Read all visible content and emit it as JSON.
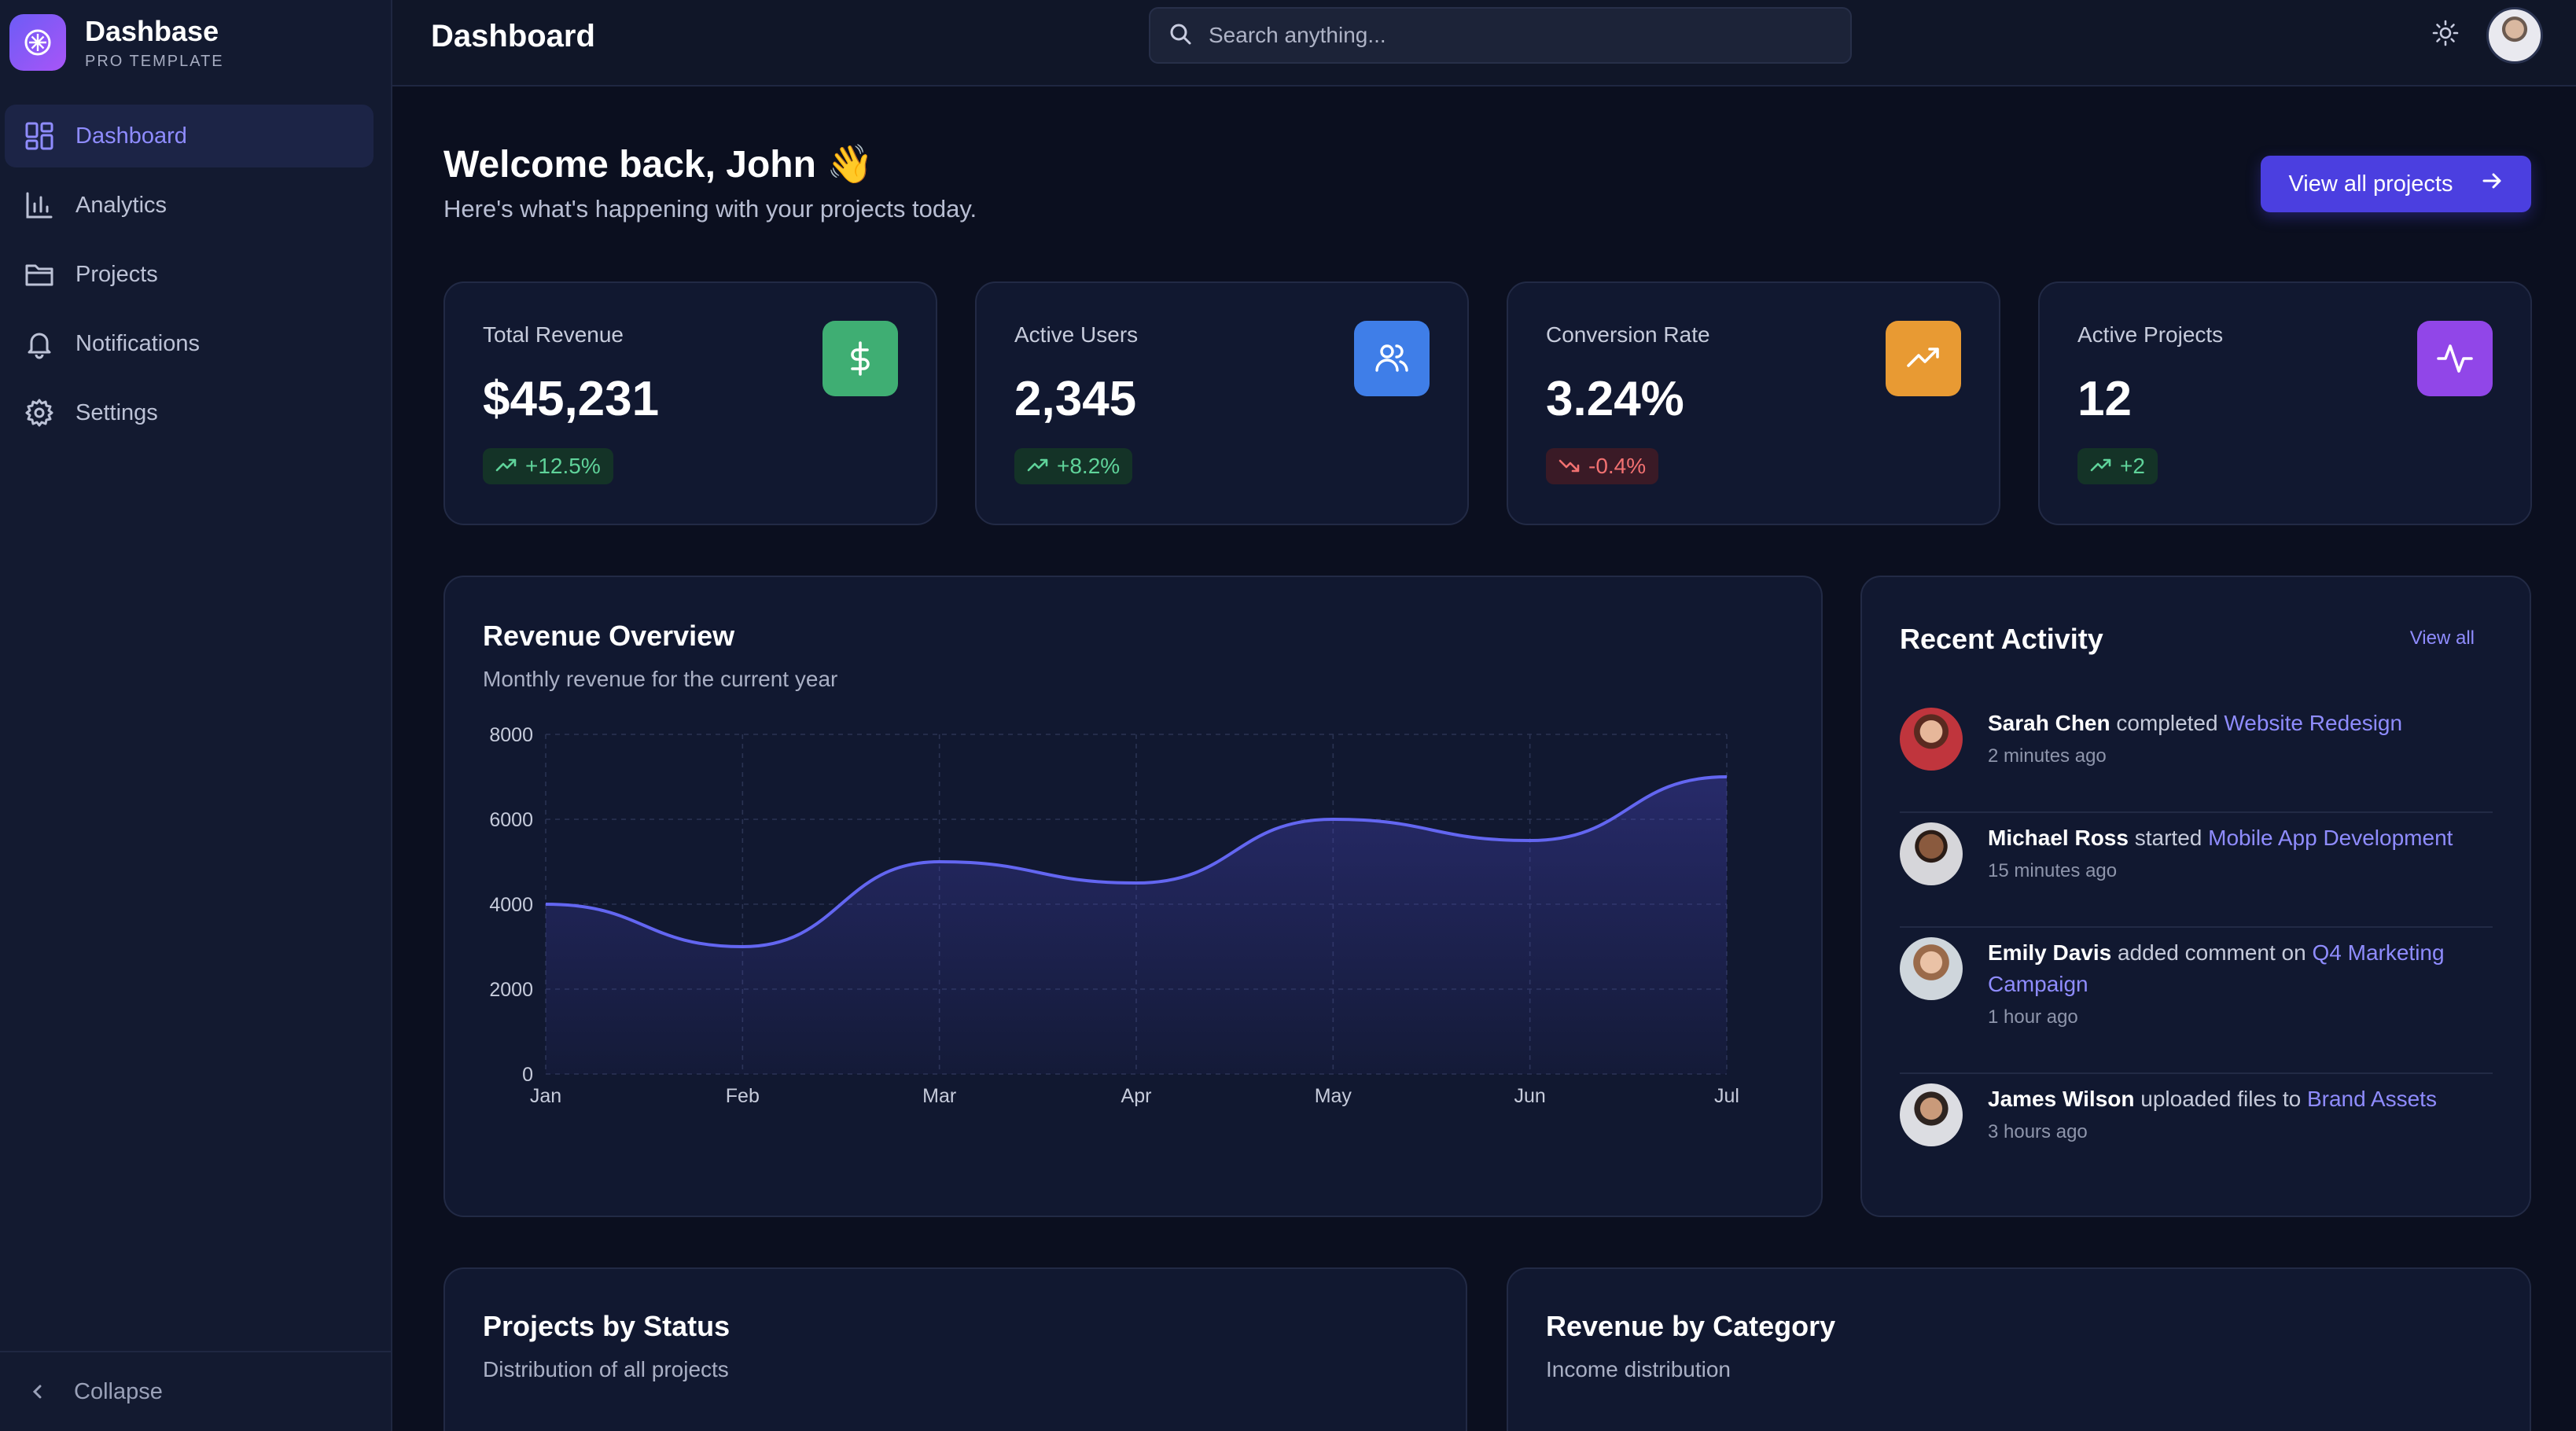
{
  "brand": {
    "name": "Dashbase",
    "tagline": "PRO TEMPLATE"
  },
  "sidebar": {
    "items": [
      {
        "label": "Dashboard",
        "icon": "grid-icon",
        "active": true
      },
      {
        "label": "Analytics",
        "icon": "bar-chart-icon"
      },
      {
        "label": "Projects",
        "icon": "folder-icon"
      },
      {
        "label": "Notifications",
        "icon": "bell-icon"
      },
      {
        "label": "Settings",
        "icon": "gear-icon"
      }
    ],
    "collapse_label": "Collapse"
  },
  "topbar": {
    "title": "Dashboard",
    "search_placeholder": "Search anything..."
  },
  "welcome": {
    "title": "Welcome back, John 👋",
    "subtitle": "Here's what's happening with your projects today.",
    "button_label": "View all projects"
  },
  "stats": [
    {
      "label": "Total Revenue",
      "value": "$45,231",
      "change": "+12.5%",
      "trend": "up",
      "icon": "dollar-icon",
      "color": "#3fae73"
    },
    {
      "label": "Active Users",
      "value": "2,345",
      "change": "+8.2%",
      "trend": "up",
      "icon": "users-icon",
      "color": "#3f7ee8"
    },
    {
      "label": "Conversion Rate",
      "value": "3.24%",
      "change": "-0.4%",
      "trend": "down",
      "icon": "trending-up-icon",
      "color": "#e89a33"
    },
    {
      "label": "Active Projects",
      "value": "12",
      "change": "+2",
      "trend": "up",
      "icon": "activity-icon",
      "color": "#9146e8"
    }
  ],
  "revenue": {
    "title": "Revenue Overview",
    "subtitle": "Monthly revenue for the current year"
  },
  "chart_data": {
    "type": "area",
    "title": "Revenue Overview",
    "categories": [
      "Jan",
      "Feb",
      "Mar",
      "Apr",
      "May",
      "Jun",
      "Jul"
    ],
    "values": [
      4000,
      3000,
      5000,
      4500,
      6000,
      5500,
      7000
    ],
    "yticks": [
      0,
      2000,
      4000,
      6000,
      8000
    ],
    "ylim": [
      0,
      8000
    ],
    "grid": true,
    "line_color": "#6366f1"
  },
  "activity": {
    "title": "Recent Activity",
    "view_all": "View all",
    "items": [
      {
        "user": "Sarah Chen",
        "action": "completed",
        "target": "Website Redesign",
        "time": "2 minutes ago"
      },
      {
        "user": "Michael Ross",
        "action": "started",
        "target": "Mobile App Development",
        "time": "15 minutes ago"
      },
      {
        "user": "Emily Davis",
        "action": "added comment on",
        "target": "Q4 Marketing Campaign",
        "time": "1 hour ago"
      },
      {
        "user": "James Wilson",
        "action": "uploaded files to",
        "target": "Brand Assets",
        "time": "3 hours ago"
      }
    ]
  },
  "projects_status": {
    "title": "Projects by Status",
    "subtitle": "Distribution of all projects"
  },
  "revenue_category": {
    "title": "Revenue by Category",
    "subtitle": "Income distribution"
  }
}
